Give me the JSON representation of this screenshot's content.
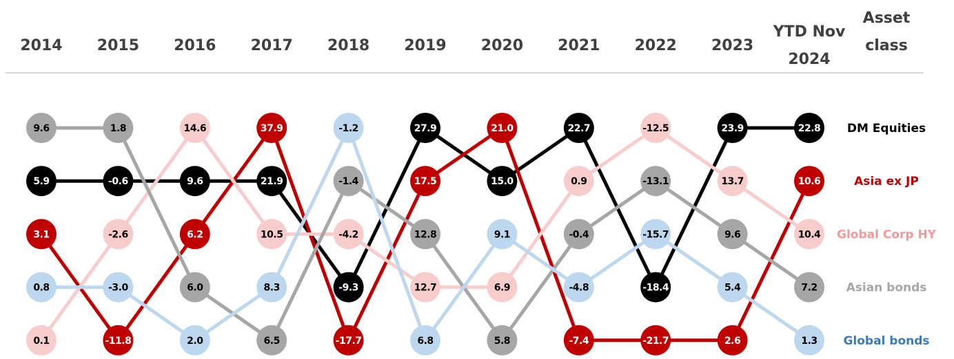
{
  "chart_data": {
    "type": "bump",
    "legend_title": "Asset class",
    "categories": [
      "2014",
      "2015",
      "2016",
      "2017",
      "2018",
      "2019",
      "2020",
      "2021",
      "2022",
      "2023",
      "YTD Nov 2024"
    ],
    "series": [
      {
        "name": "DM Equities",
        "color": "#000000",
        "text_color": "#ffffff",
        "label_color": "#000000",
        "values": [
          5.9,
          -0.6,
          9.6,
          21.9,
          -9.3,
          27.9,
          15.0,
          22.7,
          -18.4,
          23.9,
          22.8
        ],
        "value_labels": [
          "5.9",
          "-0.6",
          "9.6",
          "21.9",
          "-9.3",
          "27.9",
          "15.0",
          "22.7",
          "-18.4",
          "23.9",
          "22.8"
        ]
      },
      {
        "name": "Asia ex JP",
        "color": "#c00000",
        "text_color": "#ffffff",
        "label_color": "#c00000",
        "values": [
          3.1,
          -11.8,
          6.2,
          37.9,
          -17.7,
          17.5,
          21.0,
          -7.4,
          -21.7,
          2.6,
          10.6
        ],
        "value_labels": [
          "3.1",
          "-11.8",
          "6.2",
          "37.9",
          "-17.7",
          "17.5",
          "21.0",
          "-7.4",
          "-21.7",
          "2.6",
          "10.6"
        ]
      },
      {
        "name": "Global Corp HY",
        "color": "#f9cccc",
        "text_color": "#000000",
        "label_color": "#f29a9a",
        "values": [
          0.1,
          -2.6,
          14.6,
          10.5,
          -4.2,
          12.7,
          6.9,
          0.9,
          -12.5,
          13.7,
          10.4
        ],
        "value_labels": [
          "0.1",
          "-2.6",
          "14.6",
          "10.5",
          "-4.2",
          "12.7",
          "6.9",
          "0.9",
          "-12.5",
          "13.7",
          "10.4"
        ]
      },
      {
        "name": "Asian bonds",
        "color": "#a6a6a6",
        "text_color": "#000000",
        "label_color": "#a6a6a6",
        "values": [
          9.6,
          1.8,
          6.0,
          6.5,
          -1.4,
          12.8,
          5.8,
          -0.4,
          -13.1,
          9.6,
          7.2
        ],
        "value_labels": [
          "9.6",
          "1.8",
          "6.0",
          "6.5",
          "-1.4",
          "12.8",
          "5.8",
          "-0.4",
          "-13.1",
          "9.6",
          "7.2"
        ]
      },
      {
        "name": "Global bonds",
        "color": "#bdd7ee",
        "text_color": "#000000",
        "label_color": "#3d7ab8",
        "values": [
          0.8,
          -3.0,
          2.0,
          8.3,
          -1.2,
          6.8,
          9.1,
          -4.8,
          -15.7,
          5.4,
          1.3
        ],
        "value_labels": [
          "0.8",
          "-3.0",
          "2.0",
          "8.3",
          "-1.2",
          "6.8",
          "9.1",
          "-4.8",
          "-15.7",
          "5.4",
          "1.3"
        ]
      }
    ]
  }
}
